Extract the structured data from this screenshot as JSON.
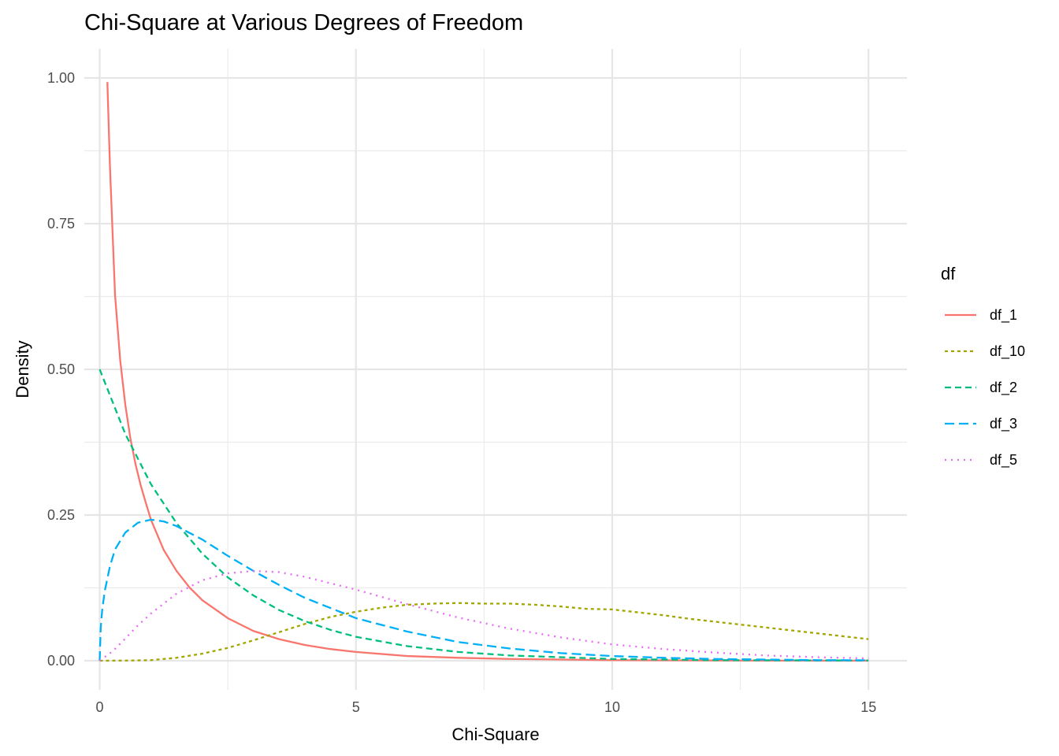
{
  "chart_data": {
    "type": "line",
    "title": "Chi-Square at Various Degrees of Freedom",
    "xlabel": "Chi-Square",
    "ylabel": "Density",
    "xlim": [
      -0.3,
      15.75
    ],
    "ylim": [
      -0.05,
      1.05
    ],
    "x_ticks": [
      0,
      5,
      10,
      15
    ],
    "x_tick_labels": [
      "0",
      "5",
      "10",
      "15"
    ],
    "y_ticks": [
      0,
      0.25,
      0.5,
      0.75,
      1
    ],
    "y_tick_labels": [
      "0.00",
      "0.25",
      "0.50",
      "0.75",
      "1.00"
    ],
    "grid": true,
    "legend": {
      "title": "df",
      "position": "right"
    },
    "series": [
      {
        "name": "df_1",
        "color": "#F8766D",
        "dash": "solid",
        "x": [
          0.15,
          0.2,
          0.3,
          0.4,
          0.5,
          0.6,
          0.7,
          0.8,
          0.9,
          1,
          1.25,
          1.5,
          1.75,
          2,
          2.5,
          3,
          3.5,
          4,
          4.5,
          5,
          6,
          7,
          8,
          9,
          10,
          11,
          12,
          13,
          14,
          15
        ],
        "values": [
          0.993,
          0.849,
          0.627,
          0.516,
          0.439,
          0.381,
          0.337,
          0.301,
          0.271,
          0.242,
          0.19,
          0.154,
          0.126,
          0.104,
          0.073,
          0.051,
          0.037,
          0.027,
          0.02,
          0.015,
          0.008,
          0.005,
          0.003,
          0.002,
          0.001,
          0.0007,
          0.0004,
          0.0002,
          0.0001,
          0.0001
        ]
      },
      {
        "name": "df_10",
        "color": "#A3A500",
        "dash": "short",
        "x": [
          0,
          0.5,
          1,
          1.5,
          2,
          2.5,
          3,
          3.5,
          4,
          4.5,
          5,
          5.5,
          6,
          6.5,
          7,
          7.5,
          8,
          8.5,
          9,
          9.5,
          10,
          10.5,
          11,
          11.5,
          12,
          12.5,
          13,
          13.5,
          14,
          14.5,
          15
        ],
        "values": [
          0,
          0.0002,
          0.001,
          0.005,
          0.012,
          0.022,
          0.035,
          0.049,
          0.063,
          0.075,
          0.084,
          0.091,
          0.096,
          0.098,
          0.099,
          0.098,
          0.098,
          0.096,
          0.093,
          0.089,
          0.088,
          0.083,
          0.078,
          0.072,
          0.067,
          0.062,
          0.057,
          0.052,
          0.047,
          0.042,
          0.037
        ]
      },
      {
        "name": "df_2",
        "color": "#00BF7D",
        "dash": "medium",
        "x": [
          0,
          0.5,
          1,
          1.5,
          2,
          2.5,
          3,
          3.5,
          4,
          4.5,
          5,
          6,
          7,
          8,
          9,
          10,
          11,
          12,
          13,
          14,
          15
        ],
        "values": [
          0.5,
          0.389,
          0.303,
          0.236,
          0.184,
          0.143,
          0.112,
          0.087,
          0.068,
          0.053,
          0.041,
          0.025,
          0.015,
          0.009,
          0.006,
          0.003,
          0.002,
          0.001,
          0.0008,
          0.0005,
          0.0003
        ]
      },
      {
        "name": "df_3",
        "color": "#00B0F6",
        "dash": "long",
        "x": [
          0,
          0.02,
          0.05,
          0.1,
          0.2,
          0.3,
          0.5,
          0.75,
          1,
          1.25,
          1.5,
          2,
          2.5,
          3,
          3.5,
          4,
          5,
          6,
          7,
          8,
          9,
          10,
          11,
          12,
          13,
          14,
          15
        ],
        "values": [
          0,
          0.056,
          0.088,
          0.12,
          0.162,
          0.191,
          0.22,
          0.237,
          0.242,
          0.239,
          0.231,
          0.208,
          0.18,
          0.154,
          0.13,
          0.108,
          0.073,
          0.05,
          0.032,
          0.021,
          0.013,
          0.008,
          0.005,
          0.003,
          0.002,
          0.001,
          0.0008
        ]
      },
      {
        "name": "df_5",
        "color": "#E76BF3",
        "dash": "dotted",
        "x": [
          0,
          0.25,
          0.5,
          0.75,
          1,
          1.5,
          2,
          2.5,
          3,
          3.5,
          4,
          4.5,
          5,
          6,
          7,
          8,
          9,
          10,
          11,
          12,
          13,
          14,
          15
        ],
        "values": [
          0,
          0.016,
          0.038,
          0.061,
          0.081,
          0.115,
          0.138,
          0.15,
          0.154,
          0.152,
          0.144,
          0.133,
          0.122,
          0.097,
          0.074,
          0.055,
          0.04,
          0.028,
          0.02,
          0.014,
          0.009,
          0.006,
          0.004
        ]
      }
    ]
  }
}
